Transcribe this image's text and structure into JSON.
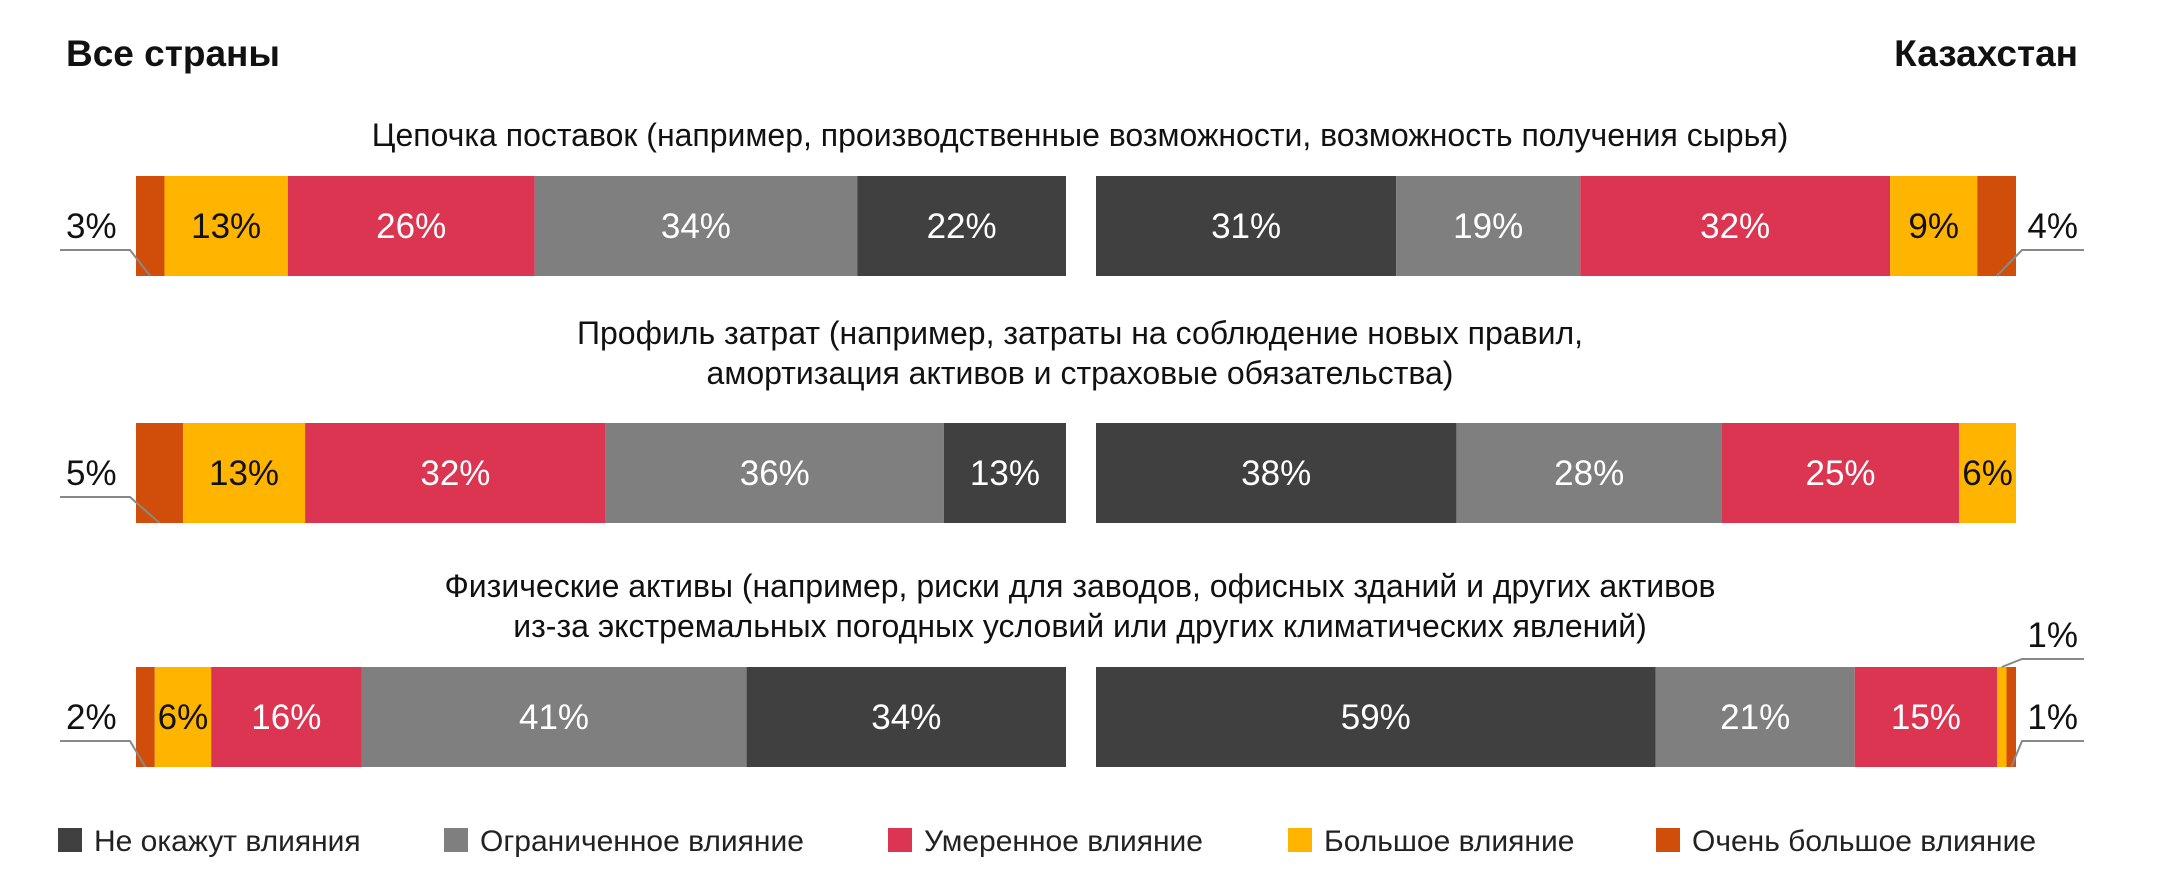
{
  "chart_data": {
    "type": "bar",
    "orientation": "horizontal-stacked",
    "panels": [
      "Все страны",
      "Казахстан"
    ],
    "categories": [
      "Цепочка поставок (например, производственные возможности, возможность получения сырья)",
      "Профиль затрат (например, затраты на соблюдение новых правил, амортизация активов и страховые обязательства)",
      "Физические активы (например, риски для заводов, офисных зданий и других активов из-за экстремальных погодных условий или других климатических явлений)"
    ],
    "series": [
      {
        "name": "Очень большое влияние",
        "color": "#d14e0a",
        "values_all": [
          3,
          5,
          2
        ],
        "values_kz": [
          4,
          0,
          1
        ]
      },
      {
        "name": "Большое влияние",
        "color": "#ffb400",
        "values_all": [
          13,
          13,
          6
        ],
        "values_kz": [
          9,
          6,
          1
        ]
      },
      {
        "name": "Умеренное влияние",
        "color": "#db3551",
        "values_all": [
          26,
          32,
          16
        ],
        "values_kz": [
          32,
          25,
          15
        ]
      },
      {
        "name": "Ограниченное влияние",
        "color": "#7f7f7f",
        "values_all": [
          34,
          36,
          41
        ],
        "values_kz": [
          19,
          28,
          21
        ]
      },
      {
        "name": "Не окажут влияния",
        "color": "#404040",
        "values_all": [
          22,
          13,
          34
        ],
        "values_kz": [
          31,
          38,
          59
        ]
      }
    ],
    "unit": "%",
    "legend_position": "bottom"
  },
  "headers": {
    "left": "Все страны",
    "right": "Казахстан"
  },
  "sections": [
    {
      "title_lines": [
        "Цепочка поставок (например, производственные возможности, возможность получения сырья)"
      ]
    },
    {
      "title_lines": [
        "Профиль затрат (например, затраты на соблюдение новых правил,",
        "амортизация активов и страховые обязательства)"
      ]
    },
    {
      "title_lines": [
        "Физические активы (например, риски для заводов, офисных зданий и других активов",
        "из-за экстремальных погодных условий или других климатических явлений)"
      ]
    }
  ],
  "legend": [
    {
      "label": "Не окажут влияния",
      "color": "#404040"
    },
    {
      "label": "Ограниченное влияние",
      "color": "#7f7f7f"
    },
    {
      "label": "Умеренное влияние",
      "color": "#db3551"
    },
    {
      "label": "Большое влияние",
      "color": "#ffb400"
    },
    {
      "label": "Очень большое влияние",
      "color": "#d14e0a"
    }
  ]
}
